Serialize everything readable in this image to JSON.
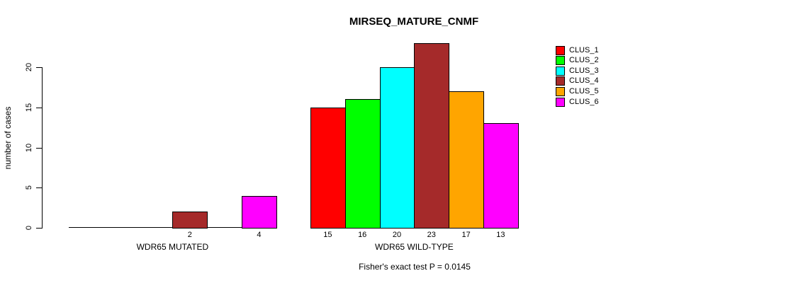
{
  "chart_data": {
    "type": "bar",
    "title": "MIRSEQ_MATURE_CNMF",
    "ylabel": "number of cases",
    "xlabel": "",
    "yticks": [
      0,
      5,
      10,
      15,
      20
    ],
    "ylim": [
      0,
      23.2
    ],
    "grid": false,
    "legend_position": "right-outside",
    "categories": [
      "CLUS_1",
      "CLUS_2",
      "CLUS_3",
      "CLUS_4",
      "CLUS_5",
      "CLUS_6"
    ],
    "colors": [
      "#ff0000",
      "#00ff00",
      "#00ffff",
      "#a52a2a",
      "#ffa500",
      "#ff00ff"
    ],
    "groups": [
      {
        "label": "WDR65 MUTATED",
        "values": [
          0,
          0,
          0,
          2,
          0,
          4
        ]
      },
      {
        "label": "WDR65 WILD-TYPE",
        "values": [
          15,
          16,
          20,
          23,
          17,
          13
        ]
      }
    ],
    "bar_value_labels": {
      "WDR65 MUTATED": [
        "",
        "",
        "",
        "2",
        "",
        "4"
      ],
      "WDR65 WILD-TYPE": [
        "15",
        "16",
        "20",
        "23",
        "17",
        "13"
      ]
    },
    "annotation": "Fisher's exact test P = 0.0145"
  }
}
